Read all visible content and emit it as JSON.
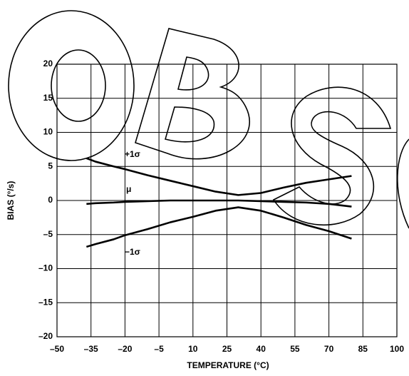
{
  "chart_data": {
    "type": "line",
    "xlabel": "TEMPERATURE (°C)",
    "ylabel": "BIAS (°/s)",
    "x": [
      -37,
      -33,
      -25,
      -20,
      -10,
      0,
      10,
      20,
      30,
      40,
      50,
      60,
      70,
      80
    ],
    "series": [
      {
        "name": "+1σ",
        "color": "#000000",
        "values": [
          6.2,
          5.7,
          5.0,
          4.6,
          3.7,
          2.9,
          2.1,
          1.3,
          0.8,
          1.1,
          1.9,
          2.6,
          3.1,
          3.6
        ]
      },
      {
        "name": "μ",
        "color": "#000000",
        "values": [
          -0.5,
          -0.4,
          -0.3,
          -0.2,
          -0.1,
          0,
          0,
          0,
          0,
          -0.1,
          -0.2,
          -0.3,
          -0.5,
          -0.9
        ]
      },
      {
        "name": "−1σ",
        "color": "#000000",
        "values": [
          -6.8,
          -6.4,
          -5.7,
          -5.1,
          -4.2,
          -3.2,
          -2.4,
          -1.5,
          -1.0,
          -1.5,
          -2.5,
          -3.6,
          -4.5,
          -5.6
        ]
      }
    ],
    "xlim": [
      -50,
      100
    ],
    "xticks": [
      {
        "value": -50,
        "label": "–50"
      },
      {
        "value": -35,
        "label": "–35"
      },
      {
        "value": -20,
        "label": "–20"
      },
      {
        "value": -5,
        "label": "–5"
      },
      10,
      25,
      40,
      55,
      70,
      85,
      100
    ],
    "ylim": [
      -20,
      20
    ],
    "yticks": [
      {
        "value": -20,
        "label": "–20"
      },
      {
        "value": -15,
        "label": "–15"
      },
      {
        "value": -10,
        "label": "–10"
      },
      {
        "value": -5,
        "label": "–5"
      },
      0,
      5,
      10,
      15,
      20
    ],
    "grid": true
  }
}
